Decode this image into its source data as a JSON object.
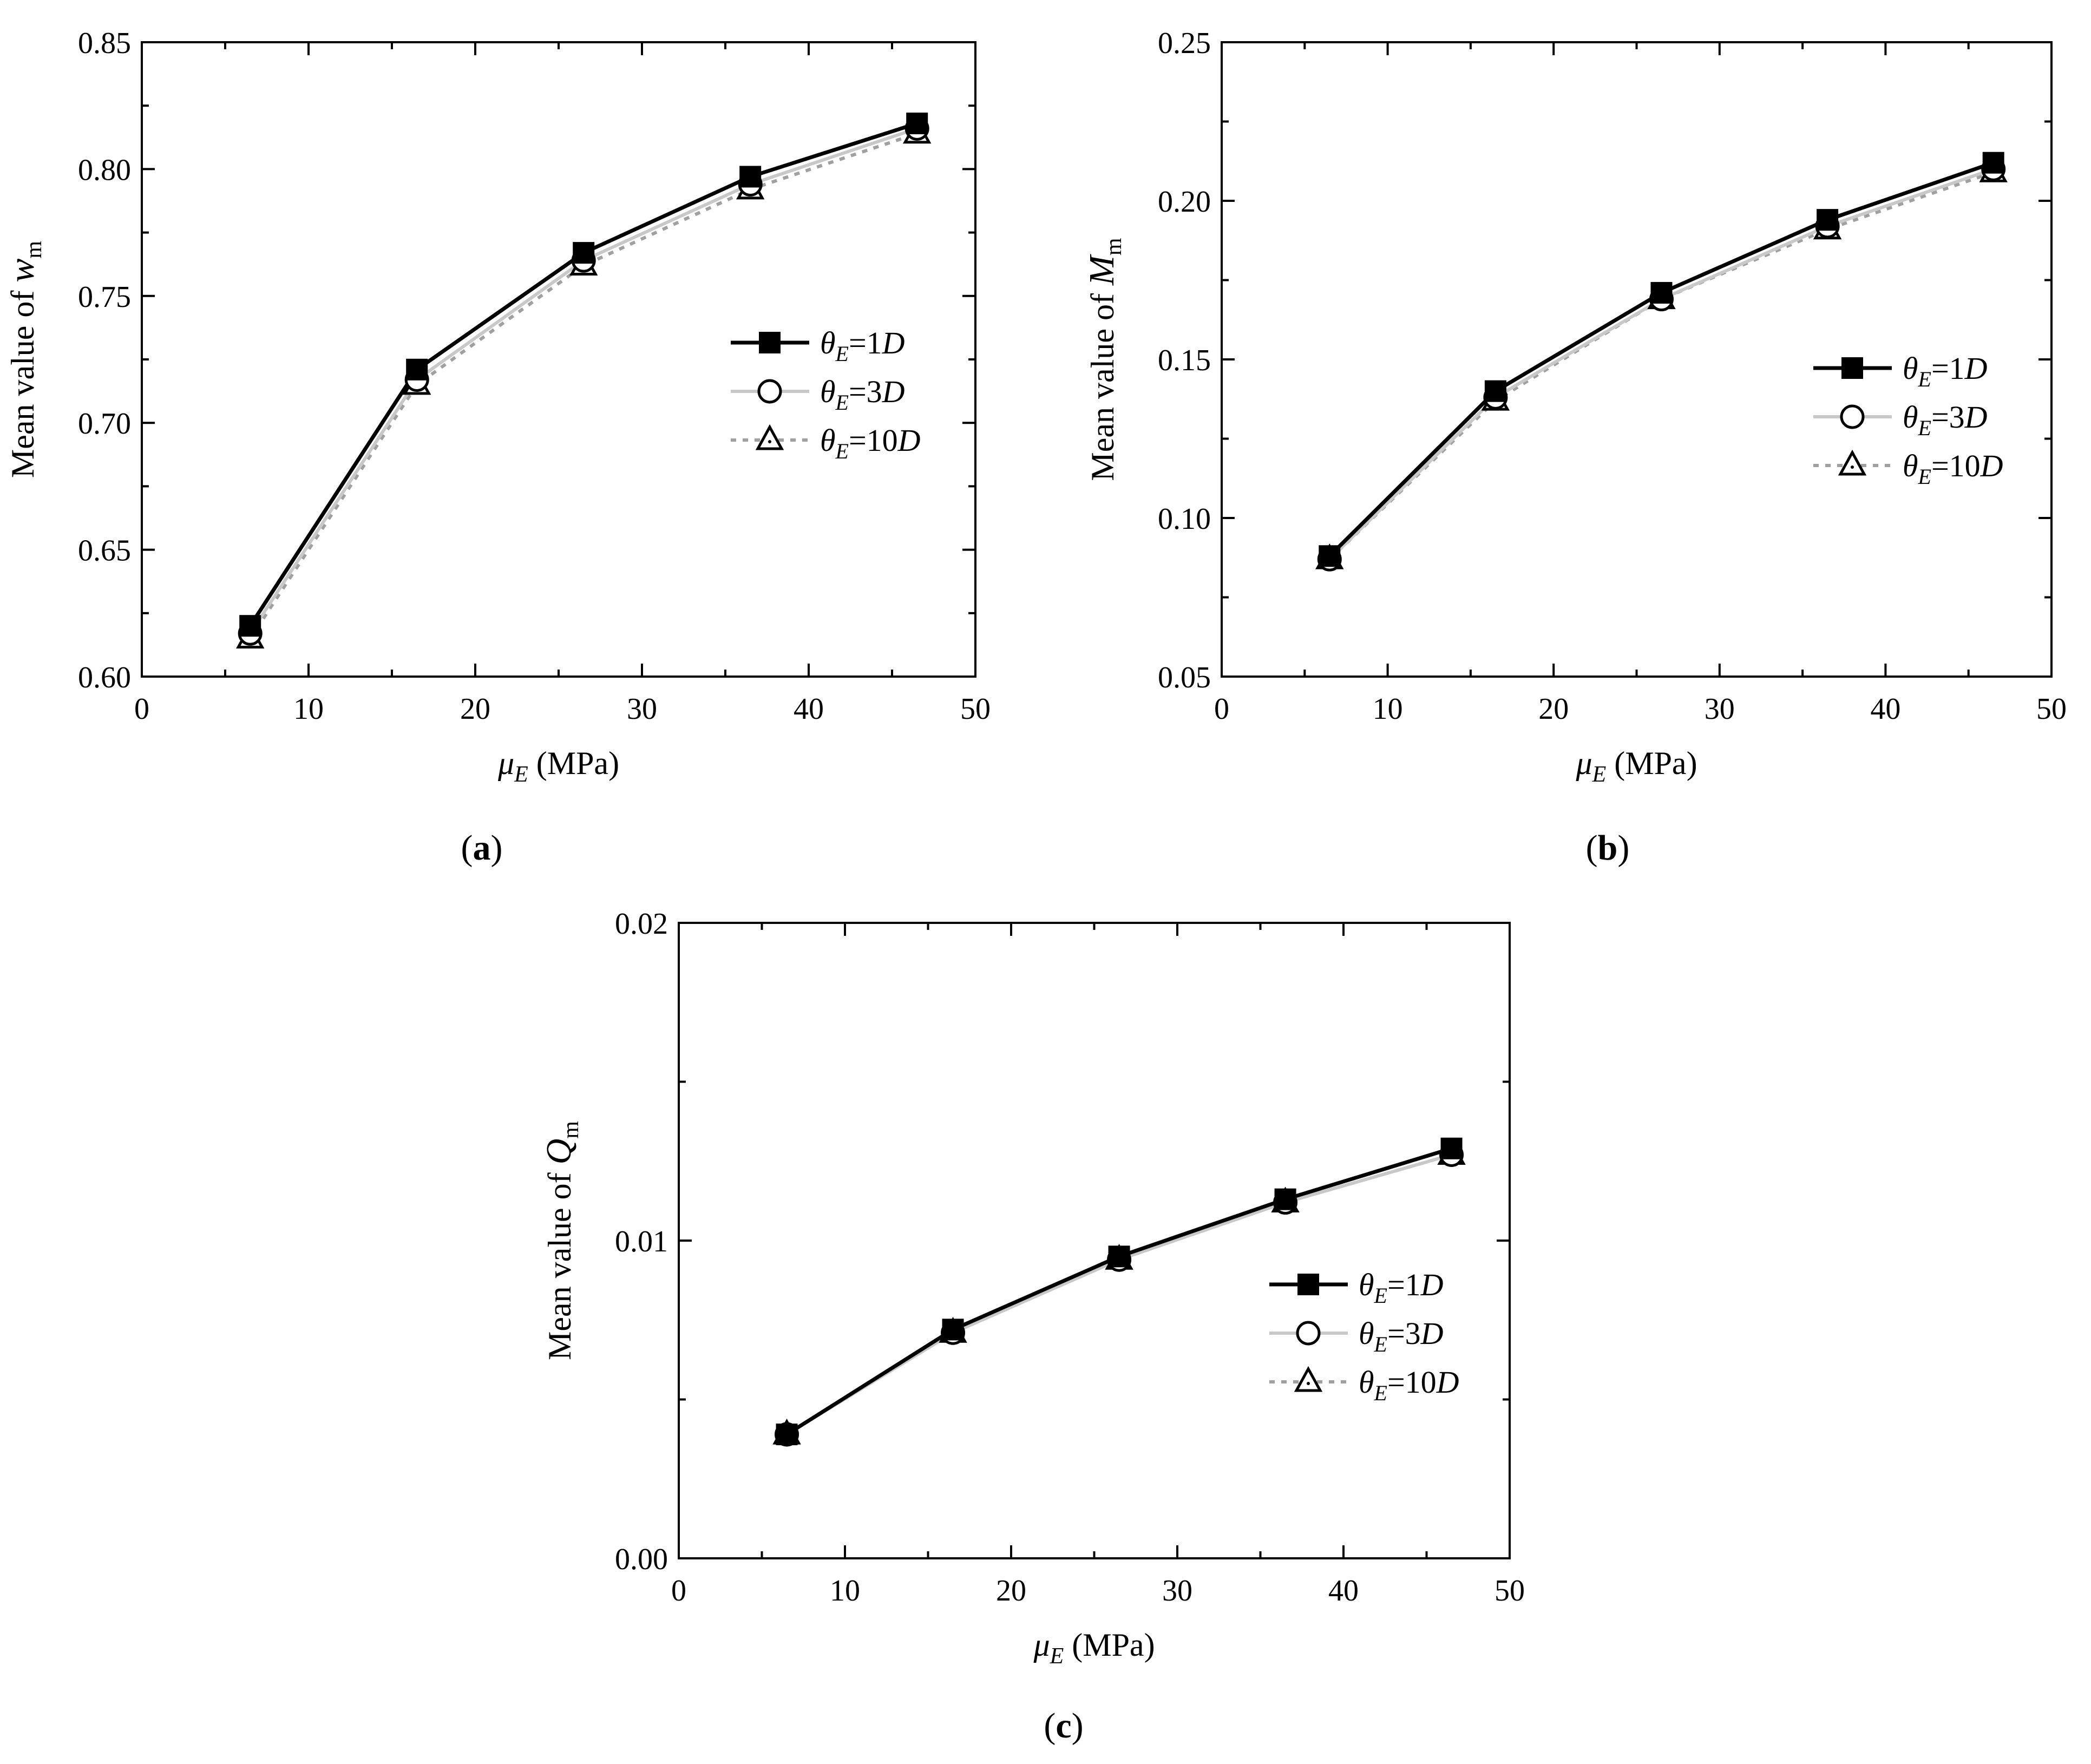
{
  "figure": {
    "panels": [
      "(a)",
      "(b)",
      "(c)"
    ]
  },
  "chart_data": [
    {
      "type": "line",
      "panel_label": "(a)",
      "xlabel_symbol": "μ",
      "xlabel_subscript": "E",
      "xlabel_unit": " (MPa)",
      "ylabel_prefix": "Mean value of ",
      "ylabel_symbol": "w",
      "ylabel_subscript": "m",
      "xlim": [
        0,
        50
      ],
      "ylim": [
        0.6,
        0.85
      ],
      "xticks": [
        0,
        10,
        20,
        30,
        40,
        50
      ],
      "yticks": [
        "0.60",
        "0.65",
        "0.70",
        "0.75",
        "0.80",
        "0.85"
      ],
      "x": [
        6.5,
        16.5,
        26.5,
        36.5,
        46.5
      ],
      "series": [
        {
          "name": "θE=1D",
          "legend_parts": [
            "θ",
            "E",
            "=1",
            "D"
          ],
          "marker": "square",
          "line": "solid",
          "color": "#000000",
          "values": [
            0.62,
            0.721,
            0.767,
            0.797,
            0.818
          ]
        },
        {
          "name": "θE=3D",
          "legend_parts": [
            "θ",
            "E",
            "=3",
            "D"
          ],
          "marker": "circle",
          "line": "solid",
          "color": "#c8c8c8",
          "values": [
            0.617,
            0.717,
            0.764,
            0.794,
            0.816
          ]
        },
        {
          "name": "θE=10D",
          "legend_parts": [
            "θ",
            "E",
            "=10",
            "D"
          ],
          "marker": "triangle",
          "line": "dotted",
          "color": "#a0a0a0",
          "values": [
            0.615,
            0.715,
            0.762,
            0.792,
            0.814
          ]
        }
      ],
      "legend": "center-right"
    },
    {
      "type": "line",
      "panel_label": "(b)",
      "xlabel_symbol": "μ",
      "xlabel_subscript": "E",
      "xlabel_unit": " (MPa)",
      "ylabel_prefix": "Mean value of ",
      "ylabel_symbol": "M",
      "ylabel_subscript": "m",
      "xlim": [
        0,
        50
      ],
      "ylim": [
        0.05,
        0.25
      ],
      "xticks": [
        0,
        10,
        20,
        30,
        40,
        50
      ],
      "yticks": [
        "0.05",
        "0.10",
        "0.15",
        "0.20",
        "0.25"
      ],
      "x": [
        6.5,
        16.5,
        26.5,
        36.5,
        46.5
      ],
      "series": [
        {
          "name": "θE=1D",
          "legend_parts": [
            "θ",
            "E",
            "=1",
            "D"
          ],
          "marker": "square",
          "line": "solid",
          "color": "#000000",
          "values": [
            0.088,
            0.14,
            0.171,
            0.194,
            0.212
          ]
        },
        {
          "name": "θE=3D",
          "legend_parts": [
            "θ",
            "E",
            "=3",
            "D"
          ],
          "marker": "circle",
          "line": "solid",
          "color": "#c8c8c8",
          "values": [
            0.087,
            0.138,
            0.169,
            0.192,
            0.21
          ]
        },
        {
          "name": "θE=10D",
          "legend_parts": [
            "θ",
            "E",
            "=10",
            "D"
          ],
          "marker": "triangle",
          "line": "dotted",
          "color": "#a0a0a0",
          "values": [
            0.087,
            0.137,
            0.169,
            0.191,
            0.209
          ]
        }
      ],
      "legend": "center-right"
    },
    {
      "type": "line",
      "panel_label": "(c)",
      "xlabel_symbol": "μ",
      "xlabel_subscript": "E",
      "xlabel_unit": " (MPa)",
      "ylabel_prefix": "Mean value of ",
      "ylabel_symbol": "Q",
      "ylabel_subscript": "m",
      "xlim": [
        0,
        50
      ],
      "ylim": [
        0.0,
        0.02
      ],
      "xticks": [
        0,
        10,
        20,
        30,
        40,
        50
      ],
      "yticks": [
        "0.00",
        "0.01",
        "0.02"
      ],
      "x": [
        6.5,
        16.5,
        26.5,
        36.5,
        46.5
      ],
      "series": [
        {
          "name": "θE=1D",
          "legend_parts": [
            "θ",
            "E",
            "=1",
            "D"
          ],
          "marker": "square",
          "line": "solid",
          "color": "#000000",
          "values": [
            0.0039,
            0.0072,
            0.0095,
            0.0113,
            0.0129
          ]
        },
        {
          "name": "θE=3D",
          "legend_parts": [
            "θ",
            "E",
            "=3",
            "D"
          ],
          "marker": "circle",
          "line": "solid",
          "color": "#c8c8c8",
          "values": [
            0.0039,
            0.0071,
            0.0094,
            0.0112,
            0.0127
          ]
        },
        {
          "name": "θE=10D",
          "legend_parts": [
            "θ",
            "E",
            "=10",
            "D"
          ],
          "marker": "triangle",
          "line": "dotted",
          "color": "#a0a0a0",
          "values": [
            0.0039,
            0.0071,
            0.0094,
            0.0112,
            0.0127
          ]
        }
      ],
      "legend": "center-right"
    }
  ]
}
